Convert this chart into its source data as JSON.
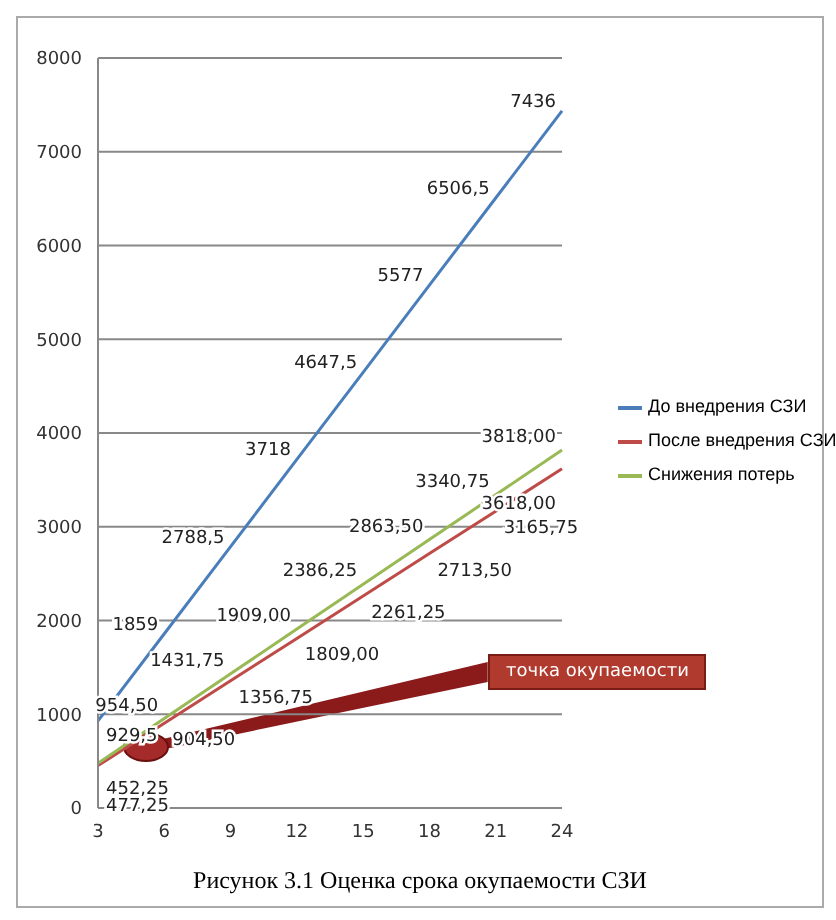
{
  "chart_data": {
    "type": "line",
    "title": "Рисунок 3.1 Оценка срока окупаемости СЗИ",
    "categories": [
      "3",
      "6",
      "9",
      "12",
      "15",
      "18",
      "21",
      "24"
    ],
    "series": [
      {
        "name": "До внедрения СЗИ",
        "color": "#4a7ebb",
        "values": [
          929.5,
          1859,
          2788.5,
          3718,
          4647.5,
          5577,
          6506.5,
          7436
        ],
        "value_labels": [
          "929,5",
          "1859",
          "2788,5",
          "3718",
          "4647,5",
          "5577",
          "6506,5",
          "7436"
        ]
      },
      {
        "name": "После внедрения СЗИ",
        "color": "#be4b48",
        "values": [
          452.25,
          904.5,
          1356.75,
          1809,
          2261.25,
          2713.5,
          3165.75,
          3618
        ],
        "value_labels": [
          "452,25",
          "904,50",
          "1356,75",
          "1809,00",
          "2261,25",
          "2713,50",
          "3165,75",
          "3618,00"
        ]
      },
      {
        "name": "Снижения потерь",
        "color": "#98b954",
        "values": [
          477.25,
          954.5,
          1431.75,
          1909,
          2386.25,
          2863.5,
          3340.75,
          3818
        ],
        "value_labels": [
          "477,25",
          "954,50",
          "1431,75",
          "1909,00",
          "2386,25",
          "2863,50",
          "3340,75",
          "3818,00"
        ]
      }
    ],
    "ylim": [
      0,
      8000
    ],
    "yticks": [
      0,
      1000,
      2000,
      3000,
      4000,
      5000,
      6000,
      7000,
      8000
    ],
    "grid": "y",
    "legend": "right",
    "marker": "none",
    "annotations": [
      "точка окупаемости"
    ]
  }
}
